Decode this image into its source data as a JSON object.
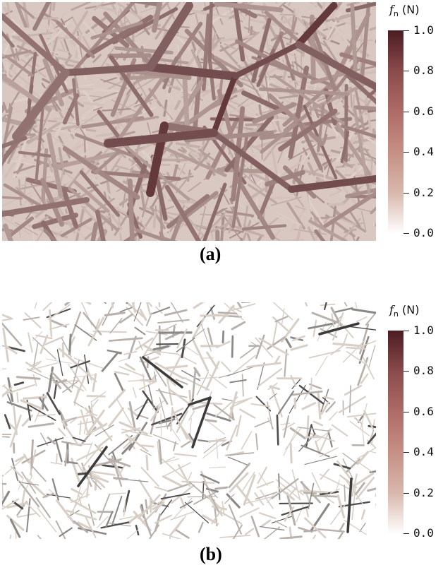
{
  "panels": [
    {
      "label": "(a)",
      "colorbar": {
        "title_var": "f",
        "title_sub": "n",
        "title_unit": "(N)",
        "ticks": [
          "1.0",
          "0.8",
          "0.6",
          "0.4",
          "0.2",
          "0.0"
        ],
        "colors": [
          "#ffffff",
          "#4b1c22"
        ]
      }
    },
    {
      "label": "(b)",
      "colorbar": {
        "title_var": "f",
        "title_sub": "n",
        "title_unit": "(N)",
        "ticks": [
          "1.0",
          "0.8",
          "0.6",
          "0.4",
          "0.2",
          "0.0"
        ],
        "colors": [
          "#ffffff",
          "#4b1c22"
        ]
      }
    }
  ]
}
